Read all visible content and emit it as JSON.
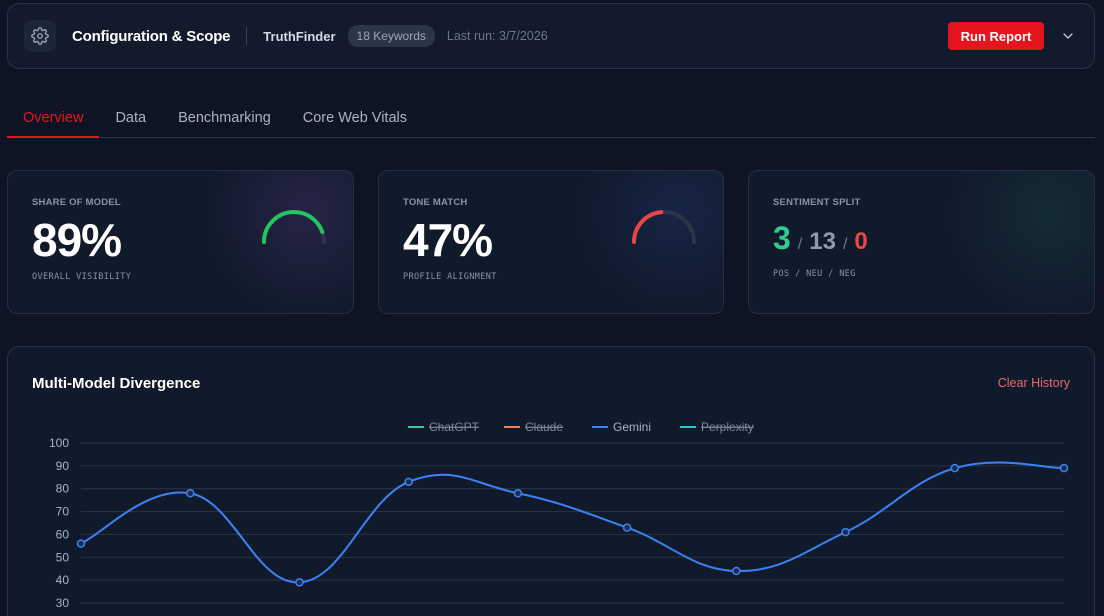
{
  "header": {
    "title": "Configuration & Scope",
    "brand": "TruthFinder",
    "keywords_badge": "18 Keywords",
    "last_run": "Last run: 3/7/2026",
    "run_label": "Run Report"
  },
  "tabs": [
    {
      "label": "Overview",
      "active": true
    },
    {
      "label": "Data",
      "active": false
    },
    {
      "label": "Benchmarking",
      "active": false
    },
    {
      "label": "Core Web Vitals",
      "active": false
    }
  ],
  "cards": {
    "share": {
      "label": "SHARE OF MODEL",
      "value": "89%",
      "sub": "OVERALL VISIBILITY",
      "fraction": 0.89,
      "color": "#22c55e"
    },
    "tone": {
      "label": "TONE MATCH",
      "value": "47%",
      "sub": "PROFILE ALIGNMENT",
      "fraction": 0.47,
      "color": "#ef4444"
    },
    "sentiment": {
      "label": "SENTIMENT SPLIT",
      "pos": "3",
      "neu": "13",
      "neg": "0",
      "sub": "POS / NEU / NEG"
    }
  },
  "chart": {
    "title": "Multi-Model Divergence",
    "clear_label": "Clear History"
  },
  "chart_data": {
    "type": "line",
    "title": "Multi-Model Divergence",
    "xlabel": "",
    "ylabel": "",
    "ylim": [
      30,
      100
    ],
    "yticks": [
      100,
      90,
      80,
      70,
      60,
      50,
      40,
      30
    ],
    "grid": true,
    "legend_position": "top-center",
    "series": [
      {
        "name": "ChatGPT",
        "color": "#2ecc9a",
        "hidden": true,
        "values": []
      },
      {
        "name": "Claude",
        "color": "#f0805a",
        "hidden": true,
        "values": []
      },
      {
        "name": "Gemini",
        "color": "#3b82f6",
        "hidden": false,
        "values": [
          56,
          78,
          39,
          83,
          78,
          63,
          44,
          61,
          89,
          89
        ]
      },
      {
        "name": "Perplexity",
        "color": "#22c5d8",
        "hidden": true,
        "values": []
      }
    ]
  }
}
